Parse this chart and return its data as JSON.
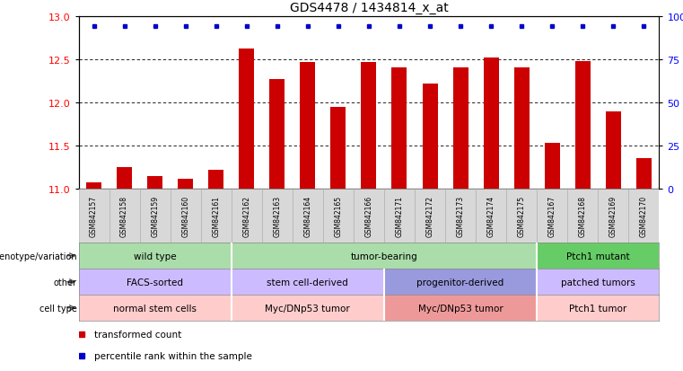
{
  "title": "GDS4478 / 1434814_x_at",
  "samples": [
    "GSM842157",
    "GSM842158",
    "GSM842159",
    "GSM842160",
    "GSM842161",
    "GSM842162",
    "GSM842163",
    "GSM842164",
    "GSM842165",
    "GSM842166",
    "GSM842171",
    "GSM842172",
    "GSM842173",
    "GSM842174",
    "GSM842175",
    "GSM842167",
    "GSM842168",
    "GSM842169",
    "GSM842170"
  ],
  "red_values": [
    11.07,
    11.25,
    11.15,
    11.12,
    11.22,
    12.62,
    12.27,
    12.47,
    11.95,
    12.47,
    12.4,
    12.22,
    12.4,
    12.52,
    12.4,
    11.53,
    12.48,
    11.9,
    11.35
  ],
  "ylim_left": [
    11.0,
    13.0
  ],
  "ylim_right": [
    0,
    100
  ],
  "yticks_left": [
    11.0,
    11.5,
    12.0,
    12.5,
    13.0
  ],
  "yticks_right": [
    0,
    25,
    50,
    75,
    100
  ],
  "bar_color": "#cc0000",
  "dot_color": "#0000cc",
  "sample_box_color": "#d8d8d8",
  "annotation_rows": [
    {
      "label": "genotype/variation",
      "groups": [
        {
          "text": "wild type",
          "start": 0,
          "end": 5,
          "color": "#aaddaa"
        },
        {
          "text": "tumor-bearing",
          "start": 5,
          "end": 15,
          "color": "#aaddaa"
        },
        {
          "text": "Ptch1 mutant",
          "start": 15,
          "end": 19,
          "color": "#66cc66"
        }
      ]
    },
    {
      "label": "other",
      "groups": [
        {
          "text": "FACS-sorted",
          "start": 0,
          "end": 5,
          "color": "#ccbbff"
        },
        {
          "text": "stem cell-derived",
          "start": 5,
          "end": 10,
          "color": "#ccbbff"
        },
        {
          "text": "progenitor-derived",
          "start": 10,
          "end": 15,
          "color": "#9999dd"
        },
        {
          "text": "patched tumors",
          "start": 15,
          "end": 19,
          "color": "#ccbbff"
        }
      ]
    },
    {
      "label": "cell type",
      "groups": [
        {
          "text": "normal stem cells",
          "start": 0,
          "end": 5,
          "color": "#ffcccc"
        },
        {
          "text": "Myc/DNp53 tumor",
          "start": 5,
          "end": 10,
          "color": "#ffcccc"
        },
        {
          "text": "Myc/DNp53 tumor",
          "start": 10,
          "end": 15,
          "color": "#ee9999"
        },
        {
          "text": "Ptch1 tumor",
          "start": 15,
          "end": 19,
          "color": "#ffcccc"
        }
      ]
    }
  ],
  "legend": [
    {
      "label": "transformed count",
      "color": "#cc0000"
    },
    {
      "label": "percentile rank within the sample",
      "color": "#0000cc"
    }
  ]
}
